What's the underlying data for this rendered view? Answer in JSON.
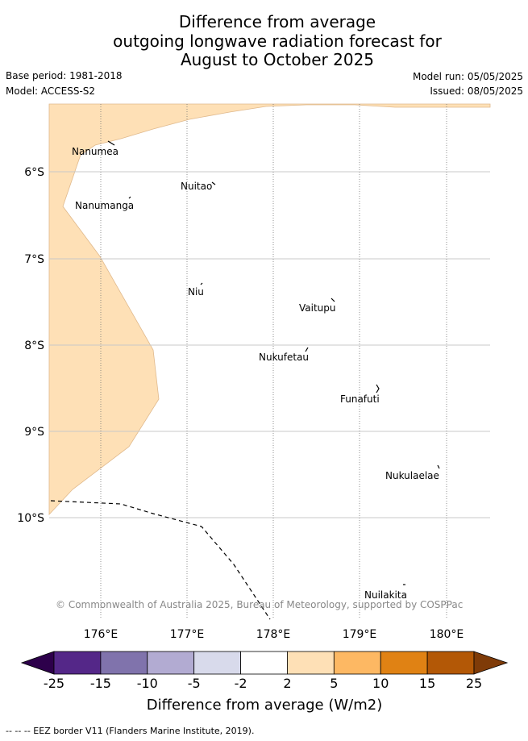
{
  "header": {
    "title_lines": [
      "Difference from average",
      "outgoing longwave radiation forecast for",
      "August to October 2025"
    ],
    "base_period": "Base period: 1981-2018",
    "model": "Model: ACCESS-S2",
    "model_run": "Model run: 05/05/2025",
    "issued": "Issued: 08/05/2025"
  },
  "map": {
    "lat_labels": [
      "6°S",
      "7°S",
      "8°S",
      "9°S",
      "10°S"
    ],
    "lon_labels": [
      "176°E",
      "177°E",
      "178°E",
      "179°E",
      "180°E"
    ],
    "places": [
      "Nanumea",
      "Nuitao",
      "Nanumanga",
      "Niu",
      "Vaitupu",
      "Nukufetau",
      "Funafuti",
      "Nukulaelae",
      "Nuilakita"
    ],
    "copyright": "© Commonwealth of Australia 2025, Bureau of Meteorology, supported by COSPPac",
    "fill_color": "#fee0b6"
  },
  "colorbar": {
    "ticks": [
      "-25",
      "-15",
      "-10",
      "-5",
      "-2",
      "2",
      "5",
      "10",
      "15",
      "25"
    ],
    "colors": [
      "#2d004b",
      "#542788",
      "#8073ac",
      "#b2abd2",
      "#d8daeb",
      "#ffffff",
      "#fee0b6",
      "#fdb863",
      "#e08214",
      "#b35806",
      "#7f3b08"
    ],
    "label": "Difference from average (W/m2)"
  },
  "footer": {
    "eez_note": "--  --  -- EEZ border V11 (Flanders Marine Institute, 2019)."
  }
}
